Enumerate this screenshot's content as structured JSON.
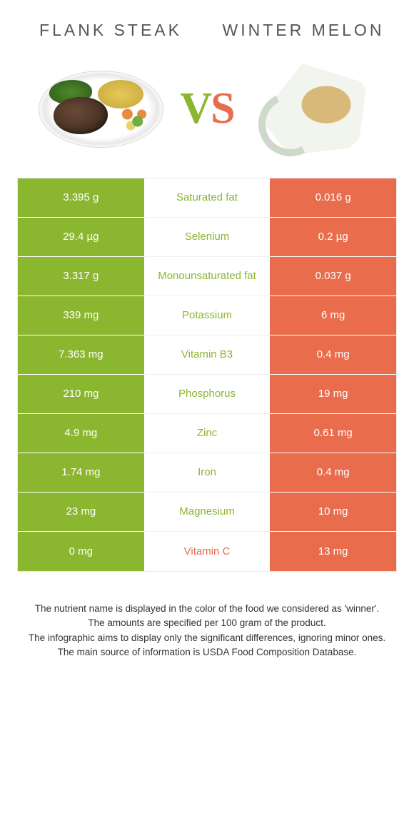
{
  "colors": {
    "left": "#8bb62f",
    "right": "#e96c4d",
    "mid_bg": "#ffffff",
    "text": "#333333",
    "title": "#555555"
  },
  "typography": {
    "title_fontsize": 23,
    "title_letterspacing": 4,
    "cell_fontsize": 15,
    "footer_fontsize": 13.5,
    "vs_fontsize": 62
  },
  "header": {
    "left_title": "Flank steak",
    "right_title": "Winter melon",
    "vs_left": "V",
    "vs_right": "S"
  },
  "rows": [
    {
      "left": "3.395 g",
      "label": "Saturated fat",
      "right": "0.016 g",
      "winner": "left"
    },
    {
      "left": "29.4 µg",
      "label": "Selenium",
      "right": "0.2 µg",
      "winner": "left"
    },
    {
      "left": "3.317 g",
      "label": "Monounsaturated fat",
      "right": "0.037 g",
      "winner": "left"
    },
    {
      "left": "339 mg",
      "label": "Potassium",
      "right": "6 mg",
      "winner": "left"
    },
    {
      "left": "7.363 mg",
      "label": "Vitamin B3",
      "right": "0.4 mg",
      "winner": "left"
    },
    {
      "left": "210 mg",
      "label": "Phosphorus",
      "right": "19 mg",
      "winner": "left"
    },
    {
      "left": "4.9 mg",
      "label": "Zinc",
      "right": "0.61 mg",
      "winner": "left"
    },
    {
      "left": "1.74 mg",
      "label": "Iron",
      "right": "0.4 mg",
      "winner": "left"
    },
    {
      "left": "23 mg",
      "label": "Magnesium",
      "right": "10 mg",
      "winner": "left"
    },
    {
      "left": "0 mg",
      "label": "Vitamin C",
      "right": "13 mg",
      "winner": "right"
    }
  ],
  "footer": {
    "line1": "The nutrient name is displayed in the color of the food we considered as 'winner'.",
    "line2": "The amounts are specified per 100 gram of the product.",
    "line3": "The infographic aims to display only the significant differences, ignoring minor ones.",
    "line4": "The main source of information is USDA Food Composition Database."
  }
}
